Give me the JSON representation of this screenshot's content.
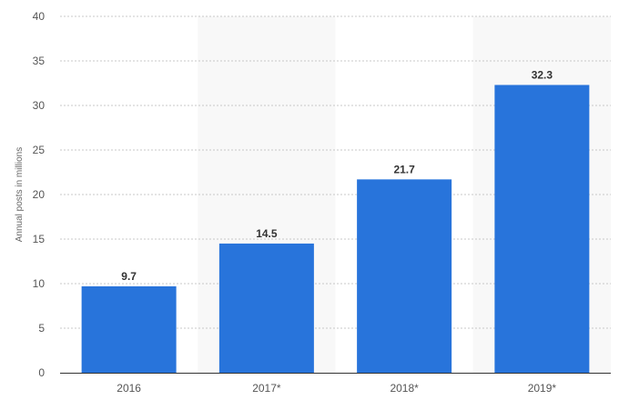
{
  "chart_data": {
    "type": "bar",
    "categories": [
      "2016",
      "2017*",
      "2018*",
      "2019*"
    ],
    "series": [
      {
        "values": [
          9.7,
          14.5,
          21.7,
          32.3
        ]
      }
    ],
    "data_labels": [
      "9.7",
      "14.5",
      "21.7",
      "32.3"
    ],
    "ylabel": "Annual posts in millions",
    "xlabel": "",
    "ylim": [
      0,
      40
    ],
    "yticks": [
      0,
      5,
      10,
      15,
      20,
      25,
      30,
      35,
      40
    ],
    "grid": true,
    "legend": "none",
    "colors": {
      "bar": "#2874db",
      "band": "#f8f8f8"
    }
  }
}
